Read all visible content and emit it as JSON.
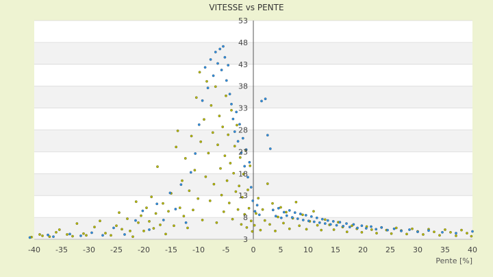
{
  "chart_data": {
    "type": "scatter",
    "title": "VITESSE vs PENTE",
    "xlabel": "Pente [%]",
    "ylabel": "",
    "xlim": [
      -40,
      40
    ],
    "ylim": [
      3,
      53
    ],
    "xticks": [
      -40,
      -35,
      -30,
      -25,
      -20,
      -15,
      -10,
      -5,
      0,
      5,
      10,
      15,
      20,
      25,
      30,
      35,
      40
    ],
    "yticks": [
      3,
      8,
      13,
      18,
      23,
      28,
      33,
      38,
      43,
      48,
      53
    ],
    "grid": "horizontal alternating bands",
    "series": [
      {
        "color": "#b5b800",
        "points": [
          [
            -40.5,
            3.5
          ],
          [
            -39,
            4.1
          ],
          [
            -38.5,
            3.8
          ],
          [
            -37.2,
            3.6
          ],
          [
            -36,
            4.6
          ],
          [
            -35.4,
            5.2
          ],
          [
            -34,
            4.1
          ],
          [
            -33,
            3.7
          ],
          [
            -32.2,
            6.6
          ],
          [
            -31,
            4.3
          ],
          [
            -30.5,
            3.9
          ],
          [
            -29,
            5.8
          ],
          [
            -28,
            7.2
          ],
          [
            -27,
            4.4
          ],
          [
            -26,
            3.9
          ],
          [
            -25,
            6.1
          ],
          [
            -24.5,
            9.1
          ],
          [
            -24,
            5.3
          ],
          [
            -23,
            7.7
          ],
          [
            -22.5,
            4.9
          ],
          [
            -22,
            3.6
          ],
          [
            -21.4,
            11.6
          ],
          [
            -21,
            6.8
          ],
          [
            -20.5,
            8.4
          ],
          [
            -20,
            4.9
          ],
          [
            -19.5,
            10.2
          ],
          [
            -19,
            7.1
          ],
          [
            -18.6,
            12.7
          ],
          [
            -18.2,
            5.5
          ],
          [
            -17.8,
            8.9
          ],
          [
            -17.5,
            19.6
          ],
          [
            -17,
            6.3
          ],
          [
            -16.5,
            11.2
          ],
          [
            -16,
            4.2
          ],
          [
            -15.5,
            9.4
          ],
          [
            -15,
            13.5
          ],
          [
            -14.5,
            6.1
          ],
          [
            -14.1,
            24.1
          ],
          [
            -13.8,
            27.8
          ],
          [
            -13.4,
            10.2
          ],
          [
            -13,
            16.4
          ],
          [
            -12.7,
            8.3
          ],
          [
            -12.4,
            21.5
          ],
          [
            -12,
            5.6
          ],
          [
            -11.7,
            14.1
          ],
          [
            -11.3,
            26.6
          ],
          [
            -11,
            9.7
          ],
          [
            -10.7,
            18.8
          ],
          [
            -10.4,
            35.4
          ],
          [
            -10.1,
            12.3
          ],
          [
            -9.8,
            41.2
          ],
          [
            -9.6,
            25.3
          ],
          [
            -9.3,
            7.4
          ],
          [
            -9,
            30.4
          ],
          [
            -8.7,
            17.3
          ],
          [
            -8.5,
            39.1
          ],
          [
            -8.2,
            22.7
          ],
          [
            -7.9,
            11.8
          ],
          [
            -7.7,
            33.6
          ],
          [
            -7.4,
            27.4
          ],
          [
            -7.2,
            15.6
          ],
          [
            -6.9,
            37.9
          ],
          [
            -6.7,
            6.8
          ],
          [
            -6.5,
            24.6
          ],
          [
            -6.2,
            31.2
          ],
          [
            -6,
            19.2
          ],
          [
            -5.8,
            13.1
          ],
          [
            -5.6,
            28.7
          ],
          [
            -5.4,
            9.3
          ],
          [
            -5.2,
            22.1
          ],
          [
            -5,
            35.8
          ],
          [
            -4.8,
            16.4
          ],
          [
            -4.6,
            26.9
          ],
          [
            -4.4,
            11.3
          ],
          [
            -4.2,
            20.4
          ],
          [
            -4,
            32.5
          ],
          [
            -3.8,
            7.6
          ],
          [
            -3.6,
            18.1
          ],
          [
            -3.4,
            24.3
          ],
          [
            -3.2,
            13.9
          ],
          [
            -3,
            29.1
          ],
          [
            -2.8,
            9.8
          ],
          [
            -2.6,
            15.2
          ],
          [
            -2.4,
            21.7
          ],
          [
            -2.2,
            6.4
          ],
          [
            -2,
            12.6
          ],
          [
            -1.8,
            17.9
          ],
          [
            -1.6,
            8.7
          ],
          [
            -1.4,
            23.4
          ],
          [
            -1.2,
            5.7
          ],
          [
            -1,
            14.3
          ],
          [
            -0.8,
            10.1
          ],
          [
            -0.6,
            19.8
          ],
          [
            -0.4,
            7.2
          ],
          [
            -0.2,
            4.8
          ],
          [
            0.2,
            6.2
          ],
          [
            0.5,
            8.9
          ],
          [
            0.9,
            12.4
          ],
          [
            1.3,
            5.1
          ],
          [
            1.7,
            9.8
          ],
          [
            2.1,
            7.3
          ],
          [
            2.6,
            15.7
          ],
          [
            3,
            6.4
          ],
          [
            3.5,
            11.2
          ],
          [
            4,
            4.9
          ],
          [
            4.5,
            8.1
          ],
          [
            5,
            10.3
          ],
          [
            5.5,
            6.7
          ],
          [
            6,
            9.2
          ],
          [
            6.6,
            5.4
          ],
          [
            7.2,
            7.8
          ],
          [
            7.8,
            11.5
          ],
          [
            8.4,
            6.1
          ],
          [
            9,
            8.6
          ],
          [
            9.7,
            5.3
          ],
          [
            10.3,
            7.1
          ],
          [
            11,
            9.4
          ],
          [
            11.7,
            6.2
          ],
          [
            12.4,
            5.1
          ],
          [
            13.1,
            7.5
          ],
          [
            13.9,
            6.3
          ],
          [
            14.7,
            5.2
          ],
          [
            15.5,
            6.9
          ],
          [
            16.3,
            5.8
          ],
          [
            17.1,
            4.7
          ],
          [
            18,
            6.1
          ],
          [
            18.9,
            5.4
          ],
          [
            19.8,
            4.6
          ],
          [
            20.7,
            5.9
          ],
          [
            21.6,
            5.2
          ],
          [
            22.5,
            4.4
          ],
          [
            23.4,
            5.7
          ],
          [
            24.3,
            5.1
          ],
          [
            25.2,
            4.3
          ],
          [
            26.1,
            5.6
          ],
          [
            27,
            5.0
          ],
          [
            28,
            4.2
          ],
          [
            29,
            5.4
          ],
          [
            30,
            4.8
          ],
          [
            31,
            4.1
          ],
          [
            32,
            5.3
          ],
          [
            33,
            4.7
          ],
          [
            34,
            3.9
          ],
          [
            35,
            5.2
          ],
          [
            36,
            4.6
          ],
          [
            37,
            3.8
          ],
          [
            38,
            5.1
          ],
          [
            39,
            4.4
          ],
          [
            39.8,
            3.7
          ]
        ]
      },
      {
        "color": "#2e8fe0",
        "points": [
          [
            -40.8,
            3.4
          ],
          [
            -37.5,
            4.0
          ],
          [
            -36.5,
            3.6
          ],
          [
            -33.5,
            4.2
          ],
          [
            -31.5,
            3.8
          ],
          [
            -29.5,
            4.5
          ],
          [
            -27.5,
            3.9
          ],
          [
            -25.5,
            5.6
          ],
          [
            -23.5,
            4.1
          ],
          [
            -21.5,
            7.3
          ],
          [
            -20.2,
            9.5
          ],
          [
            -19,
            5.2
          ],
          [
            -17.6,
            11.1
          ],
          [
            -16.4,
            7.4
          ],
          [
            -15.2,
            13.6
          ],
          [
            -14.2,
            9.9
          ],
          [
            -13.2,
            15.5
          ],
          [
            -12.3,
            6.8
          ],
          [
            -11.4,
            18.3
          ],
          [
            -10.6,
            22.6
          ],
          [
            -9.9,
            29.2
          ],
          [
            -9.3,
            34.7
          ],
          [
            -8.8,
            42.3
          ],
          [
            -8.3,
            37.6
          ],
          [
            -7.8,
            44.1
          ],
          [
            -7.3,
            40.4
          ],
          [
            -6.9,
            45.8
          ],
          [
            -6.5,
            43.2
          ],
          [
            -6.1,
            46.5
          ],
          [
            -5.8,
            41.7
          ],
          [
            -5.5,
            47.1
          ],
          [
            -5.2,
            44.6
          ],
          [
            -4.9,
            39.3
          ],
          [
            -4.6,
            42.8
          ],
          [
            -4.3,
            36.2
          ],
          [
            -4,
            33.9
          ],
          [
            -3.7,
            30.5
          ],
          [
            -3.4,
            27.6
          ],
          [
            -3.1,
            32.1
          ],
          [
            -2.8,
            25.4
          ],
          [
            -2.5,
            29.3
          ],
          [
            -2.2,
            22.8
          ],
          [
            -1.9,
            26.1
          ],
          [
            -1.6,
            19.7
          ],
          [
            -1.3,
            23.5
          ],
          [
            -1,
            17.2
          ],
          [
            -0.7,
            20.6
          ],
          [
            -0.4,
            14.9
          ],
          [
            -0.1,
            11.8
          ],
          [
            0.3,
            9.4
          ],
          [
            0.7,
            10.8
          ],
          [
            1.1,
            8.6
          ],
          [
            1.5,
            34.6
          ],
          [
            2.2,
            35.1
          ],
          [
            2.6,
            26.8
          ],
          [
            3.1,
            23.7
          ],
          [
            3.6,
            9.7
          ],
          [
            4.1,
            8.3
          ],
          [
            4.6,
            10.1
          ],
          [
            5.1,
            7.9
          ],
          [
            5.6,
            9.2
          ],
          [
            6.1,
            8.4
          ],
          [
            6.6,
            9.6
          ],
          [
            7.1,
            8.0
          ],
          [
            7.6,
            9.1
          ],
          [
            8.1,
            7.7
          ],
          [
            8.6,
            8.8
          ],
          [
            9.1,
            7.4
          ],
          [
            9.6,
            8.5
          ],
          [
            10.1,
            7.2
          ],
          [
            10.6,
            8.2
          ],
          [
            11.1,
            7.0
          ],
          [
            11.6,
            7.9
          ],
          [
            12.1,
            6.8
          ],
          [
            12.6,
            7.6
          ],
          [
            13.1,
            6.6
          ],
          [
            13.6,
            7.3
          ],
          [
            14.1,
            6.4
          ],
          [
            14.6,
            7.1
          ],
          [
            15.2,
            6.2
          ],
          [
            15.8,
            6.9
          ],
          [
            16.4,
            6.0
          ],
          [
            17,
            6.6
          ],
          [
            17.6,
            5.8
          ],
          [
            18.3,
            6.4
          ],
          [
            19,
            5.6
          ],
          [
            19.8,
            6.1
          ],
          [
            20.6,
            5.5
          ],
          [
            21.5,
            5.9
          ],
          [
            22.4,
            5.3
          ],
          [
            23.4,
            5.7
          ],
          [
            24.5,
            5.1
          ],
          [
            25.7,
            5.4
          ],
          [
            27,
            4.9
          ],
          [
            28.5,
            5.2
          ],
          [
            30,
            4.7
          ],
          [
            32,
            5.0
          ],
          [
            34.5,
            4.6
          ],
          [
            37,
            4.4
          ],
          [
            40,
            4.8
          ]
        ]
      }
    ]
  }
}
